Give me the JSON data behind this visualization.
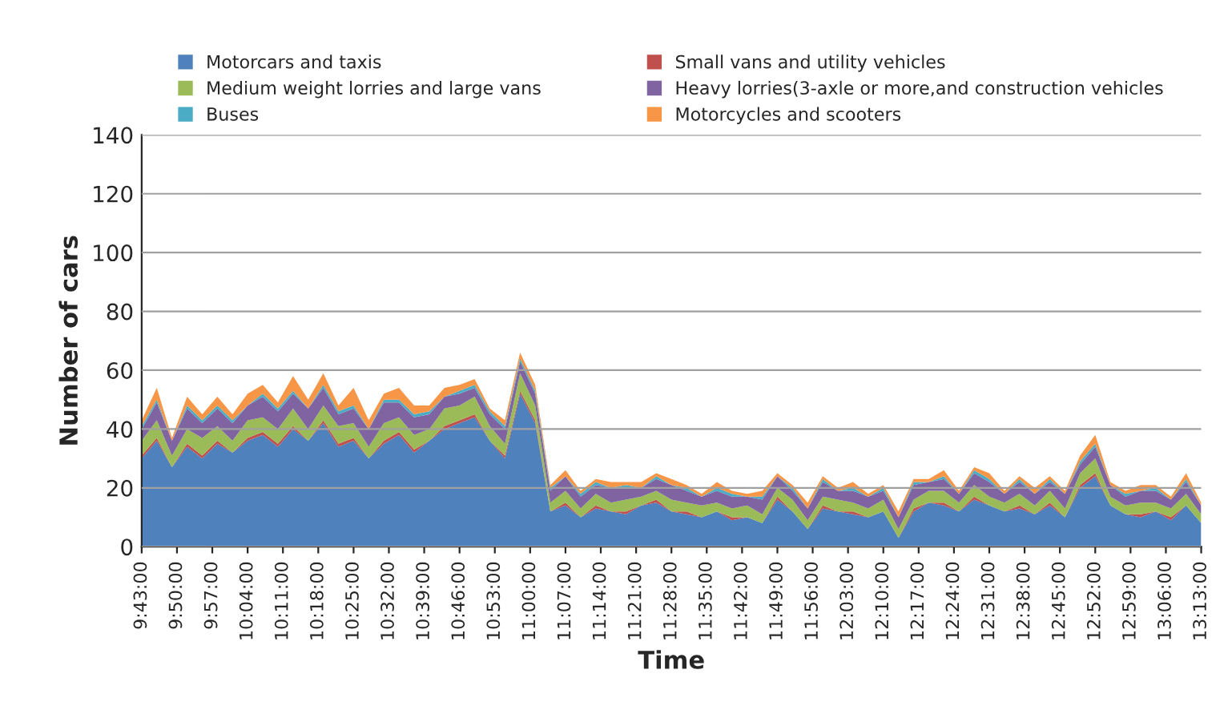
{
  "chart_data": {
    "type": "area",
    "stacked": true,
    "xlabel": "Time",
    "ylabel": "Number of cars",
    "x": [
      9.7167,
      9.7667,
      9.8167,
      9.8667,
      9.9167,
      9.9667,
      10.0167,
      10.0667,
      10.1167,
      10.1667,
      10.2167,
      10.2667,
      10.3167,
      10.3667,
      10.4167,
      10.4667,
      10.5167,
      10.5667,
      10.6167,
      10.6667,
      10.7167,
      10.7667,
      10.8167,
      10.8667,
      10.9167,
      10.9667,
      11.0167,
      11.0667,
      11.1167,
      11.1667,
      11.2167,
      11.2667,
      11.3167,
      11.3667,
      11.4167,
      11.4667,
      11.5167,
      11.5667,
      11.6167,
      11.6667,
      11.7167,
      11.7667,
      11.8167,
      11.8667,
      11.9167,
      11.9667,
      12.0167,
      12.0667,
      12.1167,
      12.1667,
      12.2167,
      12.2667,
      12.3167,
      12.3667,
      12.4167,
      12.4667,
      12.5167,
      12.5667,
      12.6167,
      12.6667,
      12.7167,
      12.7667,
      12.8167,
      12.8667,
      12.9167,
      12.9667,
      13.0167,
      13.0667,
      13.1167,
      13.1667,
      13.2167
    ],
    "series": [
      {
        "name": "Motorcars and taxis",
        "color": "#4f81bd",
        "values": [
          30,
          36,
          27,
          34,
          30,
          35,
          32,
          36,
          38,
          34,
          40,
          36,
          42,
          34,
          36,
          30,
          35,
          38,
          32,
          36,
          40,
          42,
          44,
          36,
          30,
          52,
          42,
          12,
          14,
          10,
          13,
          12,
          11,
          14,
          15,
          12,
          11,
          10,
          12,
          9,
          10,
          8,
          16,
          12,
          6,
          13,
          12,
          11,
          10,
          12,
          3,
          12,
          15,
          14,
          12,
          16,
          14,
          12,
          13,
          11,
          14,
          10,
          20,
          24,
          14,
          11,
          10,
          12,
          9,
          14,
          8
        ]
      },
      {
        "name": "Small vans and utility vehicles",
        "color": "#c0504d",
        "values": [
          1,
          1,
          0,
          1,
          1,
          1,
          0,
          1,
          1,
          1,
          1,
          0,
          1,
          1,
          1,
          0,
          1,
          1,
          1,
          0,
          1,
          1,
          1,
          0,
          1,
          1,
          1,
          0,
          1,
          0,
          1,
          0,
          1,
          0,
          1,
          0,
          1,
          0,
          0,
          1,
          0,
          0,
          1,
          0,
          0,
          1,
          0,
          1,
          0,
          0,
          0,
          1,
          0,
          1,
          0,
          1,
          0,
          0,
          1,
          0,
          1,
          0,
          1,
          1,
          0,
          0,
          1,
          0,
          1,
          0,
          0
        ]
      },
      {
        "name": "Medium weight lorries and large vans",
        "color": "#9bbb59",
        "values": [
          5,
          6,
          4,
          5,
          6,
          5,
          4,
          6,
          5,
          5,
          6,
          4,
          5,
          6,
          5,
          4,
          6,
          5,
          5,
          4,
          6,
          5,
          6,
          5,
          4,
          6,
          5,
          3,
          4,
          3,
          4,
          3,
          4,
          3,
          3,
          4,
          3,
          4,
          3,
          3,
          4,
          3,
          3,
          4,
          3,
          3,
          4,
          3,
          3,
          4,
          3,
          3,
          4,
          4,
          3,
          4,
          3,
          3,
          4,
          3,
          4,
          3,
          4,
          5,
          3,
          3,
          4,
          3,
          3,
          4,
          3
        ]
      },
      {
        "name": "Heavy lorries(3-axle or more,and construction vehicles",
        "color": "#8064a2",
        "values": [
          4,
          6,
          5,
          7,
          5,
          6,
          6,
          5,
          7,
          6,
          5,
          7,
          6,
          4,
          5,
          6,
          7,
          5,
          6,
          5,
          4,
          4,
          3,
          4,
          5,
          4,
          4,
          4,
          5,
          4,
          3,
          5,
          4,
          3,
          4,
          5,
          4,
          3,
          4,
          4,
          3,
          5,
          4,
          3,
          4,
          5,
          3,
          4,
          4,
          3,
          4,
          5,
          3,
          4,
          3,
          4,
          5,
          3,
          4,
          4,
          3,
          5,
          3,
          4,
          4,
          3,
          4,
          4,
          3,
          4,
          3
        ]
      },
      {
        "name": "Buses",
        "color": "#4bacc6",
        "values": [
          1,
          1,
          0,
          1,
          1,
          1,
          1,
          0,
          1,
          1,
          1,
          0,
          1,
          1,
          1,
          0,
          1,
          1,
          1,
          1,
          0,
          1,
          1,
          1,
          1,
          1,
          1,
          1,
          0,
          1,
          1,
          0,
          1,
          0,
          1,
          0,
          1,
          0,
          1,
          1,
          0,
          1,
          0,
          1,
          0,
          1,
          0,
          1,
          0,
          1,
          0,
          1,
          0,
          1,
          0,
          1,
          1,
          0,
          1,
          0,
          1,
          0,
          1,
          1,
          0,
          1,
          0,
          1,
          0,
          1,
          0
        ]
      },
      {
        "name": "Motorcycles and scooters",
        "color": "#f79646",
        "values": [
          2,
          4,
          1,
          3,
          2,
          3,
          2,
          4,
          3,
          2,
          5,
          3,
          4,
          2,
          6,
          3,
          2,
          4,
          3,
          2,
          3,
          2,
          2,
          1,
          2,
          2,
          2,
          1,
          2,
          1,
          1,
          2,
          1,
          2,
          1,
          2,
          1,
          1,
          2,
          1,
          1,
          2,
          1,
          1,
          2,
          1,
          1,
          2,
          1,
          1,
          2,
          1,
          1,
          2,
          1,
          1,
          2,
          1,
          1,
          2,
          1,
          1,
          2,
          3,
          1,
          1,
          2,
          1,
          1,
          2,
          1
        ]
      }
    ],
    "xlim": [
      9.7167,
      13.2167
    ],
    "xticks": [
      {
        "value": 9.7167,
        "label": "9:43:00"
      },
      {
        "value": 9.8333,
        "label": "9:50:00"
      },
      {
        "value": 9.95,
        "label": "9:57:00"
      },
      {
        "value": 10.0667,
        "label": "10:04:00"
      },
      {
        "value": 10.1833,
        "label": "10:11:00"
      },
      {
        "value": 10.3,
        "label": "10:18:00"
      },
      {
        "value": 10.4167,
        "label": "10:25:00"
      },
      {
        "value": 10.5333,
        "label": "10:32:00"
      },
      {
        "value": 10.65,
        "label": "10:39:00"
      },
      {
        "value": 10.7667,
        "label": "10:46:00"
      },
      {
        "value": 10.8833,
        "label": "10:53:00"
      },
      {
        "value": 11.0,
        "label": "11:00:00"
      },
      {
        "value": 11.1167,
        "label": "11:07:00"
      },
      {
        "value": 11.2333,
        "label": "11:14:00"
      },
      {
        "value": 11.35,
        "label": "11:21:00"
      },
      {
        "value": 11.4667,
        "label": "11:28:00"
      },
      {
        "value": 11.5833,
        "label": "11:35:00"
      },
      {
        "value": 11.7,
        "label": "11:42:00"
      },
      {
        "value": 11.8167,
        "label": "11:49:00"
      },
      {
        "value": 11.9333,
        "label": "11:56:00"
      },
      {
        "value": 12.05,
        "label": "12:03:00"
      },
      {
        "value": 12.1667,
        "label": "12:10:00"
      },
      {
        "value": 12.2833,
        "label": "12:17:00"
      },
      {
        "value": 12.4,
        "label": "12:24:00"
      },
      {
        "value": 12.5167,
        "label": "12:31:00"
      },
      {
        "value": 12.6333,
        "label": "12:38:00"
      },
      {
        "value": 12.75,
        "label": "12:45:00"
      },
      {
        "value": 12.8667,
        "label": "12:52:00"
      },
      {
        "value": 12.9833,
        "label": "12:59:00"
      },
      {
        "value": 13.1,
        "label": "13:06:00"
      },
      {
        "value": 13.2167,
        "label": "13:13:00"
      }
    ],
    "ylim": [
      0,
      140
    ],
    "yticks": [
      0,
      20,
      40,
      60,
      80,
      100,
      120,
      140
    ],
    "grid": "y",
    "legend": "top"
  }
}
